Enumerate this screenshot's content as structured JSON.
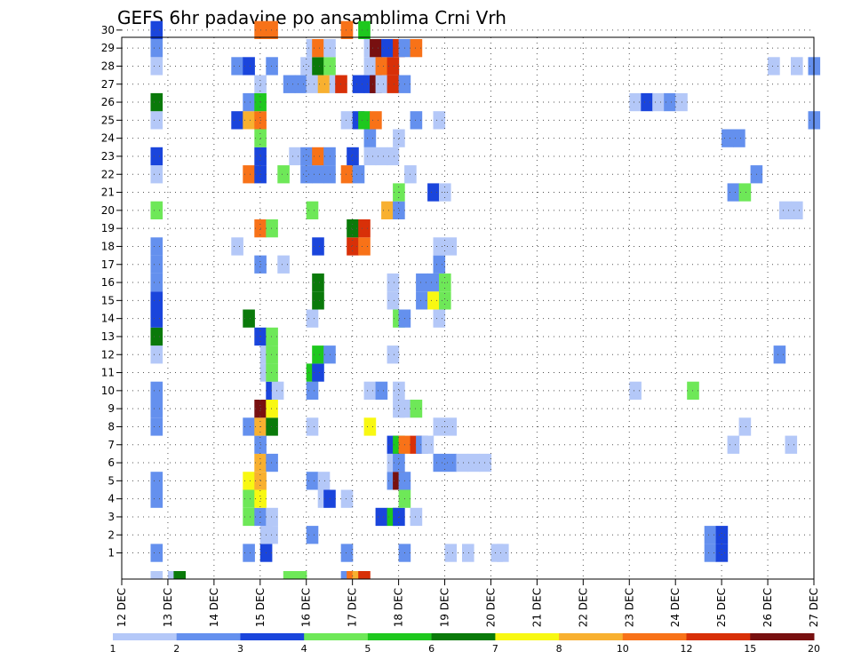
{
  "chart_data": {
    "type": "heatmap",
    "title": "GEFS 6hr padavine po ansamblima Crni Vrh",
    "xlabel": "",
    "ylabel": "",
    "x_tick_labels": [
      "12 DEC",
      "13 DEC",
      "14 DEC",
      "15 DEC",
      "16 DEC",
      "17 DEC",
      "18 DEC",
      "19 DEC",
      "20 DEC",
      "21 DEC",
      "22 DEC",
      "23 DEC",
      "24 DEC",
      "25 DEC",
      "26 DEC",
      "27 DEC"
    ],
    "x_range_days": [
      12,
      27
    ],
    "steps_per_day": 4,
    "y_tick_labels": [
      "1",
      "2",
      "3",
      "4",
      "5",
      "6",
      "7",
      "8",
      "9",
      "10",
      "11",
      "12",
      "13",
      "14",
      "15",
      "16",
      "17",
      "18",
      "19",
      "20",
      "21",
      "22",
      "23",
      "24",
      "25",
      "26",
      "27",
      "28",
      "29",
      "30"
    ],
    "grid": true,
    "colorbar": {
      "placement": "bottom",
      "tick_labels": [
        "1",
        "2",
        "3",
        "4",
        "5",
        "6",
        "7",
        "8",
        "10",
        "12",
        "15",
        "20"
      ],
      "colors": [
        "#b4c8f8",
        "#6490ee",
        "#1a45dc",
        "#6ee858",
        "#1ec81e",
        "#0a7a0a",
        "#f8f812",
        "#f8b030",
        "#f87218",
        "#d83008",
        "#781010"
      ]
    },
    "cells": [
      [
        0,
        12.625,
        1
      ],
      [
        0,
        13.0,
        1
      ],
      [
        0,
        13.125,
        6
      ],
      [
        0,
        15.5,
        4
      ],
      [
        0,
        15.75,
        4
      ],
      [
        0,
        16.75,
        2
      ],
      [
        0,
        16.875,
        9
      ],
      [
        0,
        17.0,
        8
      ],
      [
        0,
        17.125,
        10
      ],
      [
        1,
        12.625,
        2
      ],
      [
        1,
        14.625,
        2
      ],
      [
        1,
        15.0,
        3
      ],
      [
        1,
        16.75,
        2
      ],
      [
        1,
        18.0,
        2
      ],
      [
        1,
        19.0,
        1
      ],
      [
        1,
        19.375,
        1
      ],
      [
        1,
        20.0,
        1
      ],
      [
        1,
        20.125,
        1
      ],
      [
        1,
        24.625,
        2
      ],
      [
        1,
        24.875,
        3
      ],
      [
        2,
        15.0,
        1
      ],
      [
        2,
        15.125,
        1
      ],
      [
        2,
        16.0,
        2
      ],
      [
        2,
        24.625,
        2
      ],
      [
        2,
        24.875,
        3
      ],
      [
        3,
        14.625,
        4
      ],
      [
        3,
        14.875,
        2
      ],
      [
        3,
        15.125,
        1
      ],
      [
        3,
        17.5,
        3
      ],
      [
        3,
        17.75,
        5
      ],
      [
        3,
        17.875,
        3
      ],
      [
        3,
        18.25,
        1
      ],
      [
        4,
        12.625,
        2
      ],
      [
        4,
        14.625,
        4
      ],
      [
        4,
        14.875,
        7
      ],
      [
        4,
        16.25,
        1
      ],
      [
        4,
        16.375,
        3
      ],
      [
        4,
        16.75,
        1
      ],
      [
        4,
        18.0,
        4
      ],
      [
        5,
        12.625,
        2
      ],
      [
        5,
        14.625,
        7
      ],
      [
        5,
        14.875,
        8
      ],
      [
        5,
        16.0,
        2
      ],
      [
        5,
        16.25,
        1
      ],
      [
        5,
        17.75,
        2
      ],
      [
        5,
        17.875,
        11
      ],
      [
        5,
        18.0,
        2
      ],
      [
        6,
        14.875,
        8
      ],
      [
        6,
        15.125,
        2
      ],
      [
        6,
        17.75,
        1
      ],
      [
        6,
        17.875,
        2
      ],
      [
        6,
        18.75,
        2
      ],
      [
        6,
        19.0,
        2
      ],
      [
        6,
        19.25,
        1
      ],
      [
        6,
        19.5,
        1
      ],
      [
        6,
        19.75,
        1
      ],
      [
        7,
        14.875,
        2
      ],
      [
        7,
        17.75,
        3
      ],
      [
        7,
        17.875,
        5
      ],
      [
        7,
        18.0,
        9
      ],
      [
        7,
        18.25,
        10
      ],
      [
        7,
        18.375,
        2
      ],
      [
        7,
        18.5,
        1
      ],
      [
        7,
        25.125,
        1
      ],
      [
        7,
        26.375,
        1
      ],
      [
        8,
        12.625,
        2
      ],
      [
        8,
        14.625,
        2
      ],
      [
        8,
        14.875,
        8
      ],
      [
        8,
        15.125,
        6
      ],
      [
        8,
        16.0,
        1
      ],
      [
        8,
        17.25,
        7
      ],
      [
        8,
        18.75,
        1
      ],
      [
        8,
        19.0,
        1
      ],
      [
        8,
        25.375,
        1
      ],
      [
        9,
        12.625,
        2
      ],
      [
        9,
        14.875,
        11
      ],
      [
        9,
        15.125,
        7
      ],
      [
        9,
        17.875,
        1
      ],
      [
        9,
        18.0,
        1
      ],
      [
        9,
        18.25,
        4
      ],
      [
        10,
        12.625,
        2
      ],
      [
        10,
        15.125,
        3
      ],
      [
        10,
        15.25,
        1
      ],
      [
        10,
        16.0,
        2
      ],
      [
        10,
        17.25,
        1
      ],
      [
        10,
        17.5,
        2
      ],
      [
        10,
        17.875,
        1
      ],
      [
        10,
        23.0,
        1
      ],
      [
        10,
        24.25,
        4
      ],
      [
        11,
        15.0,
        1
      ],
      [
        11,
        15.125,
        4
      ],
      [
        11,
        16.0,
        5
      ],
      [
        11,
        16.125,
        3
      ],
      [
        12,
        12.625,
        1
      ],
      [
        12,
        15.0,
        1
      ],
      [
        12,
        15.125,
        4
      ],
      [
        12,
        16.125,
        5
      ],
      [
        12,
        16.375,
        2
      ],
      [
        12,
        17.75,
        1
      ],
      [
        12,
        26.125,
        2
      ],
      [
        13,
        12.625,
        6
      ],
      [
        13,
        14.875,
        3
      ],
      [
        13,
        15.125,
        4
      ],
      [
        14,
        12.625,
        3
      ],
      [
        14,
        14.625,
        6
      ],
      [
        14,
        16.0,
        1
      ],
      [
        14,
        17.875,
        4
      ],
      [
        14,
        18.0,
        2
      ],
      [
        14,
        18.75,
        1
      ],
      [
        15,
        12.625,
        3
      ],
      [
        15,
        16.125,
        6
      ],
      [
        15,
        17.75,
        1
      ],
      [
        15,
        18.375,
        2
      ],
      [
        15,
        18.625,
        7
      ],
      [
        15,
        18.875,
        4
      ],
      [
        16,
        12.625,
        2
      ],
      [
        16,
        16.125,
        6
      ],
      [
        16,
        17.75,
        1
      ],
      [
        16,
        18.375,
        2
      ],
      [
        16,
        18.625,
        2
      ],
      [
        16,
        18.875,
        4
      ],
      [
        17,
        12.625,
        2
      ],
      [
        17,
        14.875,
        2
      ],
      [
        17,
        15.375,
        1
      ],
      [
        17,
        18.75,
        2
      ],
      [
        18,
        12.625,
        2
      ],
      [
        18,
        14.375,
        1
      ],
      [
        18,
        16.125,
        3
      ],
      [
        18,
        16.875,
        10
      ],
      [
        18,
        17.125,
        9
      ],
      [
        18,
        18.75,
        1
      ],
      [
        18,
        19.0,
        1
      ],
      [
        19,
        14.875,
        9
      ],
      [
        19,
        15.125,
        4
      ],
      [
        19,
        16.875,
        6
      ],
      [
        19,
        17.125,
        10
      ],
      [
        20,
        12.625,
        4
      ],
      [
        20,
        16.0,
        4
      ],
      [
        20,
        17.625,
        8
      ],
      [
        20,
        17.875,
        2
      ],
      [
        20,
        26.25,
        1
      ],
      [
        20,
        26.5,
        1
      ],
      [
        21,
        17.875,
        4
      ],
      [
        21,
        18.625,
        3
      ],
      [
        21,
        18.875,
        1
      ],
      [
        21,
        25.125,
        2
      ],
      [
        21,
        25.375,
        4
      ],
      [
        22,
        12.625,
        1
      ],
      [
        22,
        14.625,
        9
      ],
      [
        22,
        14.875,
        3
      ],
      [
        22,
        15.375,
        4
      ],
      [
        22,
        15.875,
        2
      ],
      [
        22,
        16.125,
        2
      ],
      [
        22,
        16.375,
        2
      ],
      [
        22,
        16.75,
        9
      ],
      [
        22,
        17.0,
        2
      ],
      [
        22,
        18.125,
        1
      ],
      [
        22,
        25.625,
        2
      ],
      [
        23,
        12.625,
        3
      ],
      [
        23,
        14.875,
        3
      ],
      [
        23,
        15.625,
        1
      ],
      [
        23,
        15.875,
        2
      ],
      [
        23,
        16.125,
        9
      ],
      [
        23,
        16.375,
        2
      ],
      [
        23,
        16.875,
        3
      ],
      [
        23,
        17.25,
        1
      ],
      [
        23,
        17.5,
        1
      ],
      [
        23,
        17.75,
        1
      ],
      [
        24,
        14.875,
        4
      ],
      [
        24,
        17.25,
        2
      ],
      [
        24,
        17.875,
        1
      ],
      [
        24,
        25.0,
        2
      ],
      [
        24,
        25.25,
        2
      ],
      [
        25,
        12.625,
        1
      ],
      [
        25,
        14.375,
        3
      ],
      [
        25,
        14.625,
        8
      ],
      [
        25,
        14.875,
        9
      ],
      [
        25,
        16.75,
        1
      ],
      [
        25,
        17.0,
        3
      ],
      [
        25,
        17.125,
        5
      ],
      [
        25,
        17.375,
        9
      ],
      [
        25,
        18.25,
        2
      ],
      [
        25,
        18.75,
        1
      ],
      [
        25,
        26.875,
        2
      ],
      [
        26,
        12.625,
        6
      ],
      [
        26,
        14.625,
        2
      ],
      [
        26,
        14.875,
        5
      ],
      [
        26,
        23.0,
        1
      ],
      [
        26,
        23.25,
        3
      ],
      [
        26,
        23.5,
        1
      ],
      [
        26,
        23.75,
        2
      ],
      [
        26,
        24.0,
        1
      ],
      [
        27,
        14.875,
        1
      ],
      [
        27,
        15.5,
        2
      ],
      [
        27,
        15.75,
        2
      ],
      [
        27,
        16.0,
        1
      ],
      [
        27,
        16.25,
        8
      ],
      [
        27,
        16.5,
        1
      ],
      [
        27,
        16.625,
        10
      ],
      [
        27,
        17.0,
        3
      ],
      [
        27,
        17.25,
        3
      ],
      [
        27,
        17.375,
        11
      ],
      [
        27,
        17.5,
        1
      ],
      [
        27,
        17.75,
        10
      ],
      [
        27,
        18.0,
        2
      ],
      [
        28,
        12.625,
        1
      ],
      [
        28,
        14.375,
        2
      ],
      [
        28,
        14.625,
        3
      ],
      [
        28,
        15.125,
        2
      ],
      [
        28,
        15.875,
        1
      ],
      [
        28,
        16.125,
        6
      ],
      [
        28,
        16.375,
        4
      ],
      [
        28,
        17.25,
        1
      ],
      [
        28,
        17.5,
        9
      ],
      [
        28,
        17.75,
        10
      ],
      [
        28,
        26.0,
        1
      ],
      [
        28,
        26.5,
        1
      ],
      [
        28,
        26.875,
        2
      ],
      [
        29,
        12.625,
        2
      ],
      [
        29,
        16.0,
        1
      ],
      [
        29,
        16.125,
        9
      ],
      [
        29,
        16.375,
        1
      ],
      [
        29,
        17.25,
        1
      ],
      [
        29,
        17.375,
        11
      ],
      [
        29,
        17.625,
        3
      ],
      [
        29,
        17.875,
        10
      ],
      [
        29,
        18.0,
        2
      ],
      [
        29,
        18.25,
        9
      ],
      [
        30,
        12.625,
        3
      ],
      [
        30,
        14.875,
        9
      ],
      [
        30,
        15.125,
        9
      ],
      [
        30,
        16.75,
        9
      ],
      [
        30,
        17.125,
        5
      ]
    ]
  }
}
